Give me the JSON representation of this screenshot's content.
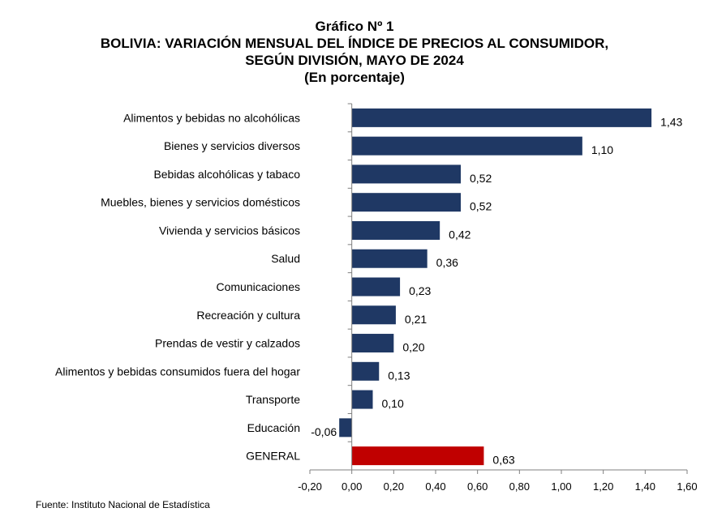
{
  "header": {
    "figure_label": "Gráfico Nº 1",
    "title_line1": "BOLIVIA: VARIACIÓN MENSUAL DEL ÍNDICE DE PRECIOS AL CONSUMIDOR,",
    "title_line2": "SEGÚN DIVISIÓN, MAYO DE 2024",
    "subtitle": "(En porcentaje)"
  },
  "footer": {
    "source": "Fuente: Instituto Nacional de Estadística"
  },
  "chart_data": {
    "type": "bar",
    "orientation": "horizontal",
    "categories": [
      "Alimentos y bebidas no alcohólicas",
      "Bienes y servicios diversos",
      "Bebidas alcohólicas y tabaco",
      "Muebles, bienes y servicios domésticos",
      "Vivienda y servicios básicos",
      "Salud",
      "Comunicaciones",
      "Recreación y cultura",
      "Prendas de vestir y calzados",
      "Alimentos y bebidas consumidos fuera del hogar",
      "Transporte",
      "Educación",
      "GENERAL"
    ],
    "values": [
      1.43,
      1.1,
      0.52,
      0.52,
      0.42,
      0.36,
      0.23,
      0.21,
      0.2,
      0.13,
      0.1,
      -0.06,
      0.63
    ],
    "data_labels": [
      "1,43",
      "1,10",
      "0,52",
      "0,52",
      "0,42",
      "0,36",
      "0,23",
      "0,21",
      "0,20",
      "0,13",
      "0,10",
      "-0,06",
      "0,63"
    ],
    "xlim": [
      -0.2,
      1.6
    ],
    "x_ticks": [
      -0.2,
      0.0,
      0.2,
      0.4,
      0.6,
      0.8,
      1.0,
      1.2,
      1.4,
      1.6
    ],
    "x_tick_labels": [
      "-0,20",
      "0,00",
      "0,20",
      "0,40",
      "0,60",
      "0,80",
      "1,00",
      "1,20",
      "1,40",
      "1,60"
    ],
    "colors": {
      "bar": "#1f3864",
      "highlight": "#c00000",
      "axis": "#7f7f7f"
    },
    "highlight_category": "GENERAL",
    "grid": false,
    "legend": "none"
  }
}
